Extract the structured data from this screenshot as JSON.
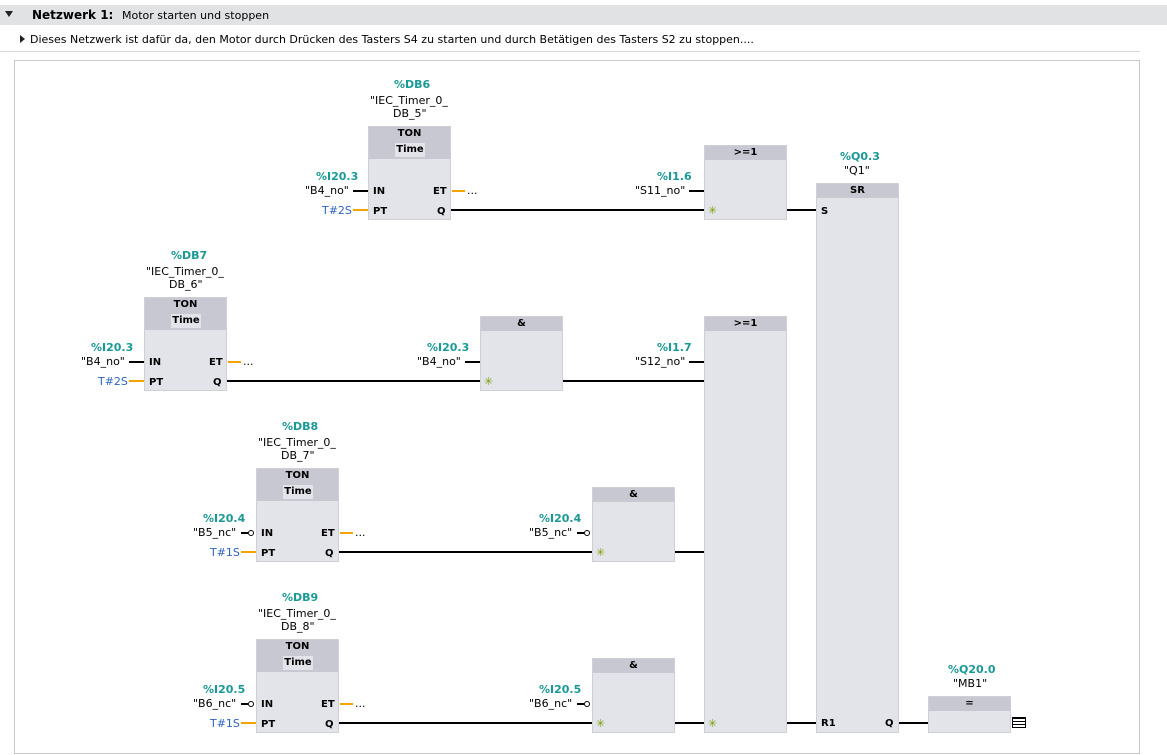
{
  "network": {
    "label": "Netzwerk 1:",
    "name": "Motor starten und stoppen",
    "comment": "Dieses Netzwerk ist dafür da, den Motor durch Drücken des Tasters S4 zu starten und durch Betätigen des Tasters S2 zu stoppen...."
  },
  "timers": [
    {
      "db": "%DB6",
      "inst_line1": "\"IEC_Timer_0_",
      "inst_line2": "DB_5\"",
      "type": "TON",
      "subtype": "Time",
      "in_addr": "%I20.3",
      "in_sym": "\"B4_no\"",
      "pt": "T#2S",
      "et": "..."
    },
    {
      "db": "%DB7",
      "inst_line1": "\"IEC_Timer_0_",
      "inst_line2": "DB_6\"",
      "type": "TON",
      "subtype": "Time",
      "in_addr": "%I20.3",
      "in_sym": "\"B4_no\"",
      "pt": "T#2S",
      "et": "..."
    },
    {
      "db": "%DB8",
      "inst_line1": "\"IEC_Timer_0_",
      "inst_line2": "DB_7\"",
      "type": "TON",
      "subtype": "Time",
      "in_addr": "%I20.4",
      "in_sym": "\"B5_nc\"",
      "pt": "T#1S",
      "et": "..."
    },
    {
      "db": "%DB9",
      "inst_line1": "\"IEC_Timer_0_",
      "inst_line2": "DB_8\"",
      "type": "TON",
      "subtype": "Time",
      "in_addr": "%I20.5",
      "in_sym": "\"B6_nc\"",
      "pt": "T#1S",
      "et": "..."
    }
  ],
  "pins": {
    "in": "IN",
    "pt": "PT",
    "et": "ET",
    "q": "Q",
    "s": "S",
    "r1": "R1"
  },
  "and_blocks": [
    {
      "title": "&",
      "addr": "%I20.3",
      "sym": "\"B4_no\""
    },
    {
      "title": "&",
      "addr": "%I20.4",
      "sym": "\"B5_nc\""
    },
    {
      "title": "&",
      "addr": "%I20.5",
      "sym": "\"B6_nc\""
    }
  ],
  "or_blocks": [
    {
      "title": ">=1",
      "addr": "%I1.6",
      "sym": "\"S11_no\""
    },
    {
      "title": ">=1",
      "addr": "%I1.7",
      "sym": "\"S12_no\""
    }
  ],
  "sr_block": {
    "title": "SR",
    "addr": "%Q0.3",
    "sym": "\"Q1\""
  },
  "assign_block": {
    "title": "=",
    "addr": "%Q20.0",
    "sym": "\"MB1\""
  },
  "colors": {
    "address": "#1a9a96",
    "constant": "#2d64c8",
    "unconnected": "#f3a400",
    "block": "#e3e3ea",
    "block_header": "#c8c8d2"
  }
}
